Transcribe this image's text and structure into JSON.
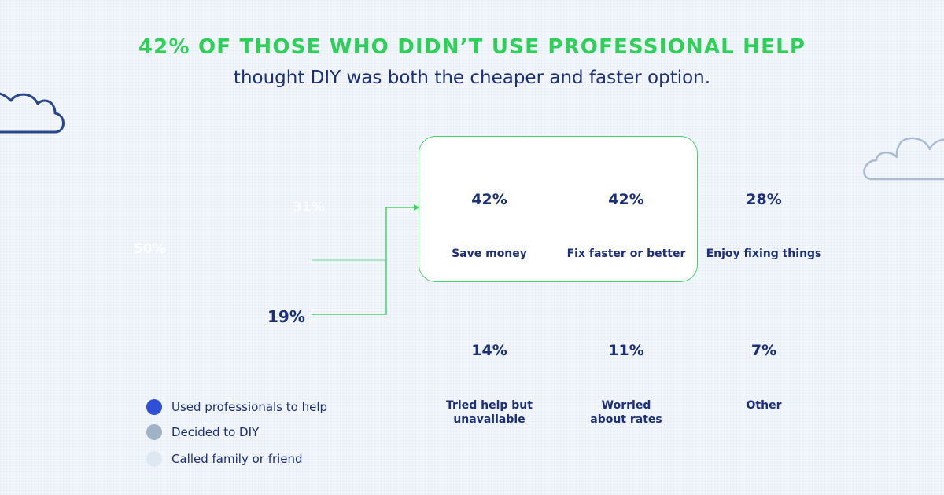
{
  "header": {
    "headline": "42% OF THOSE WHO DIDN’T USE PROFESSIONAL HELP",
    "subline": "thought DIY was both the cheaper and faster option."
  },
  "colors": {
    "accent_green": "#2fd05a",
    "navy": "#1b2f7a",
    "professionals": "#2f4fd6",
    "diy": "#9fb2c8",
    "family": "#dde8f3"
  },
  "breakdown": [
    {
      "label": "Used professionals to help",
      "value": "50%"
    },
    {
      "label": "Called family or friend",
      "value": "31%"
    },
    {
      "label": "Decided to DIY",
      "value": "19%"
    }
  ],
  "legend": [
    {
      "label": "Used professionals to help",
      "color": "#2f4fd6"
    },
    {
      "label": "Decided to DIY",
      "color": "#9fb2c8"
    },
    {
      "label": "Called family or friend",
      "color": "#dde8f3"
    }
  ],
  "chart_data": {
    "type": "table",
    "title": "42% OF THOSE WHO DIDN’T USE PROFESSIONAL HELP",
    "subtitle": "thought DIY was both the cheaper and faster option.",
    "categories": [
      "Save money",
      "Fix faster or better",
      "Enjoy fixing things",
      "Tried help but unavailable",
      "Worried about rates",
      "Other"
    ],
    "values": [
      42,
      42,
      28,
      14,
      11,
      7
    ],
    "highlighted": [
      "Save money",
      "Fix faster or better"
    ],
    "reasons": [
      {
        "value": "42%",
        "label_lines": [
          "Save money"
        ]
      },
      {
        "value": "42%",
        "label_lines": [
          "Fix faster or better"
        ]
      },
      {
        "value": "28%",
        "label_lines": [
          "Enjoy fixing things"
        ]
      },
      {
        "value": "14%",
        "label_lines": [
          "Tried help but",
          "unavailable"
        ]
      },
      {
        "value": "11%",
        "label_lines": [
          "Worried",
          "about rates"
        ]
      },
      {
        "value": "7%",
        "label_lines": [
          "Other"
        ]
      }
    ]
  }
}
